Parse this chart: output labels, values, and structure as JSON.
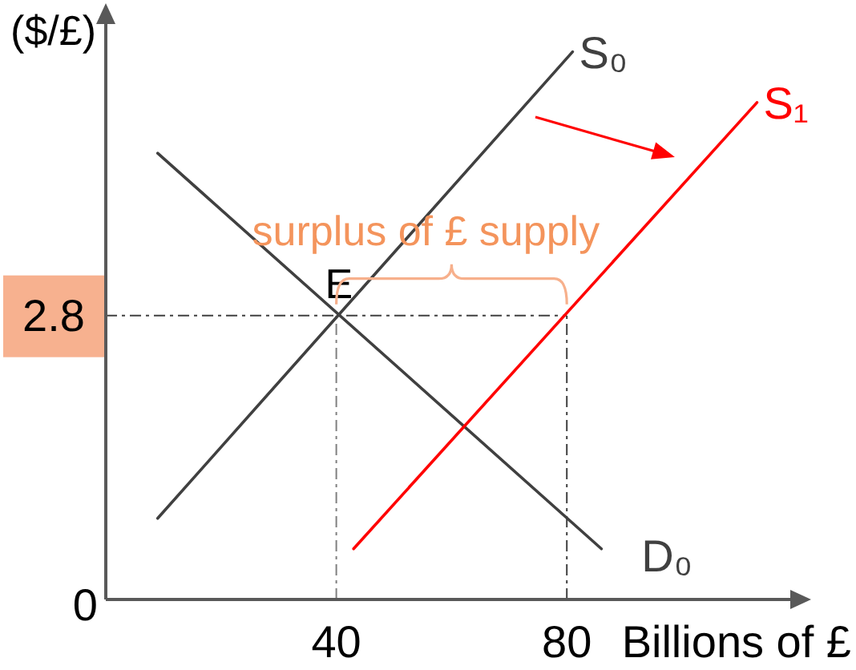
{
  "chart_data": {
    "type": "line",
    "xlabel": "Billions of £",
    "ylabel": "($/£)",
    "xlim": [
      0,
      121
    ],
    "ylim": [
      0,
      5.8
    ],
    "xticks": [
      40,
      80
    ],
    "yticks": [
      0,
      2.8
    ],
    "series": [
      {
        "name": "S₀",
        "color": "#404040",
        "x": [
          9,
          81
        ],
        "values": [
          0.8,
          5.4
        ]
      },
      {
        "name": "D₀",
        "color": "#404040",
        "x": [
          9,
          86
        ],
        "values": [
          4.4,
          0.5
        ]
      },
      {
        "name": "S₁",
        "color": "#ff0000",
        "x": [
          43,
          113
        ],
        "values": [
          0.5,
          4.9
        ]
      }
    ],
    "ref_lines": [
      {
        "axis": "y",
        "value": 2.8,
        "color": "#404040",
        "line_style": "dashed"
      },
      {
        "axis": "x",
        "value": 40,
        "color": "#808080",
        "line_style": "dashed"
      },
      {
        "axis": "x",
        "value": 80,
        "color": "#404040",
        "line_style": "dashed"
      }
    ],
    "annotations": [
      {
        "text": "E",
        "x": 40,
        "y": 2.8
      },
      "surplus of £ supply"
    ],
    "marker": "none",
    "line_style": "solid"
  }
}
